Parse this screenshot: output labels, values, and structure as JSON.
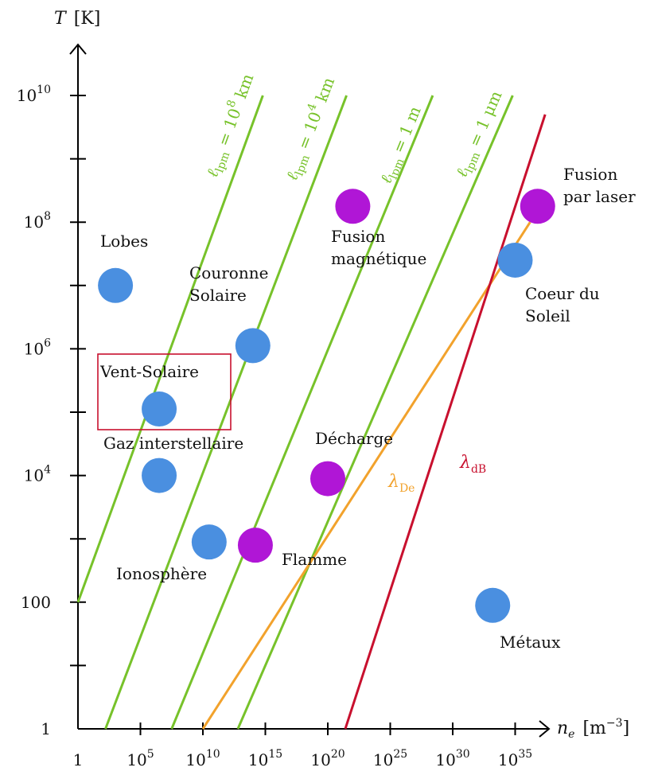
{
  "chart_data": {
    "type": "scatter",
    "x_scale": "log",
    "y_scale": "log",
    "x_axis": {
      "label": "n",
      "label_sub": "e",
      "unit": "[m",
      "unit_sup": "−3",
      "unit_close": "]",
      "range_exp": [
        0,
        36
      ],
      "ticks": [
        {
          "exp": 0,
          "label": "1",
          "sup": ""
        },
        {
          "exp": 5,
          "label": "10",
          "sup": "5"
        },
        {
          "exp": 10,
          "label": "10",
          "sup": "10"
        },
        {
          "exp": 15,
          "label": "10",
          "sup": "15"
        },
        {
          "exp": 20,
          "label": "10",
          "sup": "20"
        },
        {
          "exp": 25,
          "label": "10",
          "sup": "25"
        },
        {
          "exp": 30,
          "label": "10",
          "sup": "30"
        },
        {
          "exp": 35,
          "label": "10",
          "sup": "35"
        }
      ]
    },
    "y_axis": {
      "label": "T",
      "unit": "[K]",
      "range_exp": [
        0,
        11
      ],
      "ticks": [
        {
          "exp": 0,
          "label": "1",
          "sup": ""
        },
        {
          "exp": 1,
          "label": "",
          "sup": ""
        },
        {
          "exp": 2,
          "label": "100",
          "sup": ""
        },
        {
          "exp": 3,
          "label": "",
          "sup": ""
        },
        {
          "exp": 4,
          "label": "10",
          "sup": "4"
        },
        {
          "exp": 5,
          "label": "",
          "sup": ""
        },
        {
          "exp": 6,
          "label": "10",
          "sup": "6"
        },
        {
          "exp": 7,
          "label": "",
          "sup": ""
        },
        {
          "exp": 8,
          "label": "10",
          "sup": "8"
        },
        {
          "exp": 9,
          "label": "",
          "sup": ""
        },
        {
          "exp": 10,
          "label": "10",
          "sup": "10"
        }
      ]
    },
    "iso_lines": [
      {
        "kind": "lpm",
        "name_base": "ℓ",
        "name_sub": "lpm",
        "value_text": " = 10",
        "value_sup": "8",
        "value_unit": " km",
        "color": "#77c22a",
        "x_exp_start": 0,
        "y_exp_start": 2,
        "x_exp_end": 14.8,
        "y_exp_end": 10
      },
      {
        "kind": "lpm",
        "name_base": "ℓ",
        "name_sub": "lpm",
        "value_text": " = 10",
        "value_sup": "4",
        "value_unit": " km",
        "color": "#77c22a",
        "x_exp_start": 2.2,
        "y_exp_start": 0,
        "x_exp_end": 21.5,
        "y_exp_end": 10
      },
      {
        "kind": "lpm",
        "name_base": "ℓ",
        "name_sub": "lpm",
        "value_text": " = 1 m",
        "value_sup": "",
        "value_unit": "",
        "color": "#77c22a",
        "x_exp_start": 7.5,
        "y_exp_start": 0,
        "x_exp_end": 28.4,
        "y_exp_end": 10
      },
      {
        "kind": "lpm",
        "name_base": "ℓ",
        "name_sub": "lpm",
        "value_text": " = 1 μm",
        "value_sup": "",
        "value_unit": "",
        "color": "#77c22a",
        "x_exp_start": 12.8,
        "y_exp_start": 0,
        "x_exp_end": 34.8,
        "y_exp_end": 10
      },
      {
        "kind": "debye",
        "name_base": "λ",
        "name_sub": "De",
        "color": "#f2a22c",
        "x_exp_start": 10,
        "y_exp_start": 0,
        "x_exp_end": 36.2,
        "y_exp_end": 8
      },
      {
        "kind": "debroglie",
        "name_base": "λ",
        "name_sub": "dB",
        "color": "#c8102e",
        "x_exp_start": 21.4,
        "y_exp_start": 0,
        "x_exp_end": 37.4,
        "y_exp_end": 9.7
      }
    ],
    "points": [
      {
        "name": "Lobes",
        "x_exp": 3,
        "y_exp": 7,
        "color": "#4a8fe0",
        "label_lines": [
          "Lobes"
        ]
      },
      {
        "name": "Couronne Solaire",
        "x_exp": 14,
        "y_exp": 6.05,
        "color": "#4a8fe0",
        "label_lines": [
          "Couronne",
          "Solaire"
        ]
      },
      {
        "name": "Vent-Solaire",
        "x_exp": 6.5,
        "y_exp": 5.05,
        "color": "#4a8fe0",
        "label_lines": [
          "Vent-Solaire"
        ]
      },
      {
        "name": "Gaz interstellaire",
        "x_exp": 6.5,
        "y_exp": 4,
        "color": "#4a8fe0",
        "label_lines": [
          "Gaz interstellaire"
        ]
      },
      {
        "name": "Ionosphère",
        "x_exp": 10.5,
        "y_exp": 2.95,
        "color": "#4a8fe0",
        "label_lines": [
          "Ionosphère"
        ]
      },
      {
        "name": "Flamme",
        "x_exp": 14.2,
        "y_exp": 2.9,
        "color": "#b016d6",
        "label_lines": [
          "Flamme"
        ]
      },
      {
        "name": "Décharge",
        "x_exp": 20,
        "y_exp": 3.95,
        "color": "#b016d6",
        "label_lines": [
          "Décharge"
        ]
      },
      {
        "name": "Fusion magnétique",
        "x_exp": 22,
        "y_exp": 8.25,
        "color": "#b016d6",
        "label_lines": [
          "Fusion",
          "magnétique"
        ]
      },
      {
        "name": "Fusion par laser",
        "x_exp": 36.8,
        "y_exp": 8.25,
        "color": "#b016d6",
        "label_lines": [
          "Fusion",
          "par laser"
        ]
      },
      {
        "name": "Coeur du Soleil",
        "x_exp": 35,
        "y_exp": 7.4,
        "color": "#4a8fe0",
        "label_lines": [
          "Coeur du",
          "Soleil"
        ]
      },
      {
        "name": "Métaux",
        "x_exp": 33.2,
        "y_exp": 1.95,
        "color": "#4a8fe0",
        "label_lines": [
          "Métaux"
        ]
      }
    ],
    "highlight_box_around": "Vent-Solaire",
    "highlight_color": "#c8102e"
  }
}
